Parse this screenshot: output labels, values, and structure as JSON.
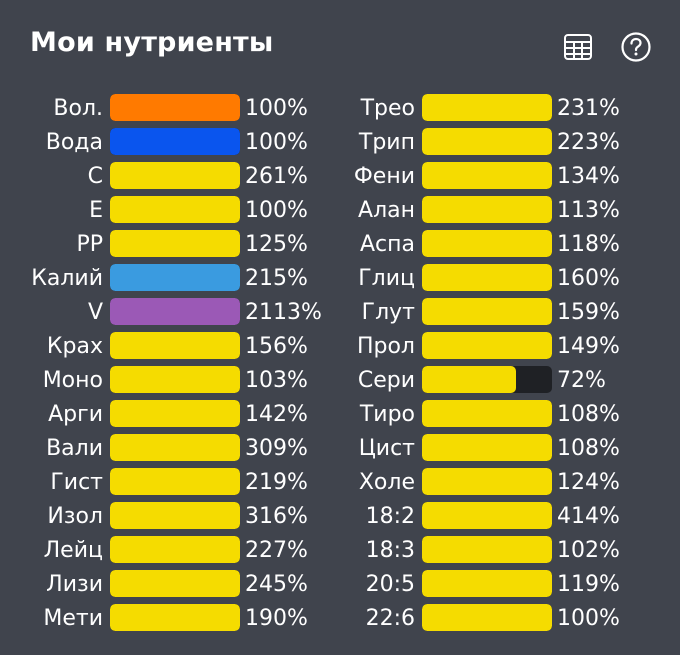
{
  "header": {
    "title": "Мои нутриенты"
  },
  "icons": {
    "table": "table-icon",
    "help": "help-icon"
  },
  "colors": {
    "yellow": "#f5dc00",
    "orange": "#ff7a00",
    "blue": "#0a55ee",
    "light_blue": "#3a9be0",
    "purple": "#9b59b6",
    "track": "#1f2125",
    "background": "#40444d"
  },
  "nutrients_left": [
    {
      "label": "Вол.",
      "value": "100%",
      "fill": 1.0,
      "color": "#ff7a00"
    },
    {
      "label": "Вода",
      "value": "100%",
      "fill": 1.0,
      "color": "#0a55ee"
    },
    {
      "label": "C",
      "value": "261%",
      "fill": 1.0,
      "color": "#f5dc00"
    },
    {
      "label": "E",
      "value": "100%",
      "fill": 1.0,
      "color": "#f5dc00"
    },
    {
      "label": "PP",
      "value": "125%",
      "fill": 1.0,
      "color": "#f5dc00"
    },
    {
      "label": "Калий",
      "value": "215%",
      "fill": 1.0,
      "color": "#3a9be0"
    },
    {
      "label": "V",
      "value": "2113%",
      "fill": 1.0,
      "color": "#9b59b6"
    },
    {
      "label": "Крах",
      "value": "156%",
      "fill": 1.0,
      "color": "#f5dc00"
    },
    {
      "label": "Моно",
      "value": "103%",
      "fill": 1.0,
      "color": "#f5dc00"
    },
    {
      "label": "Арги",
      "value": "142%",
      "fill": 1.0,
      "color": "#f5dc00"
    },
    {
      "label": "Вали",
      "value": "309%",
      "fill": 1.0,
      "color": "#f5dc00"
    },
    {
      "label": "Гист",
      "value": "219%",
      "fill": 1.0,
      "color": "#f5dc00"
    },
    {
      "label": "Изол",
      "value": "316%",
      "fill": 1.0,
      "color": "#f5dc00"
    },
    {
      "label": "Лейц",
      "value": "227%",
      "fill": 1.0,
      "color": "#f5dc00"
    },
    {
      "label": "Лизи",
      "value": "245%",
      "fill": 1.0,
      "color": "#f5dc00"
    },
    {
      "label": "Мети",
      "value": "190%",
      "fill": 1.0,
      "color": "#f5dc00"
    }
  ],
  "nutrients_right": [
    {
      "label": "Трео",
      "value": "231%",
      "fill": 1.0,
      "color": "#f5dc00"
    },
    {
      "label": "Трип",
      "value": "223%",
      "fill": 1.0,
      "color": "#f5dc00"
    },
    {
      "label": "Фени",
      "value": "134%",
      "fill": 1.0,
      "color": "#f5dc00"
    },
    {
      "label": "Алан",
      "value": "113%",
      "fill": 1.0,
      "color": "#f5dc00"
    },
    {
      "label": "Аспа",
      "value": "118%",
      "fill": 1.0,
      "color": "#f5dc00"
    },
    {
      "label": "Глиц",
      "value": "160%",
      "fill": 1.0,
      "color": "#f5dc00"
    },
    {
      "label": "Глут",
      "value": "159%",
      "fill": 1.0,
      "color": "#f5dc00"
    },
    {
      "label": "Прол",
      "value": "149%",
      "fill": 1.0,
      "color": "#f5dc00"
    },
    {
      "label": "Сери",
      "value": "72%",
      "fill": 0.72,
      "color": "#f5dc00"
    },
    {
      "label": "Тиро",
      "value": "108%",
      "fill": 1.0,
      "color": "#f5dc00"
    },
    {
      "label": "Цист",
      "value": "108%",
      "fill": 1.0,
      "color": "#f5dc00"
    },
    {
      "label": "Холе",
      "value": "124%",
      "fill": 1.0,
      "color": "#f5dc00"
    },
    {
      "label": "18:2",
      "value": "414%",
      "fill": 1.0,
      "color": "#f5dc00"
    },
    {
      "label": "18:3",
      "value": "102%",
      "fill": 1.0,
      "color": "#f5dc00"
    },
    {
      "label": "20:5",
      "value": "119%",
      "fill": 1.0,
      "color": "#f5dc00"
    },
    {
      "label": "22:6",
      "value": "100%",
      "fill": 1.0,
      "color": "#f5dc00"
    }
  ]
}
